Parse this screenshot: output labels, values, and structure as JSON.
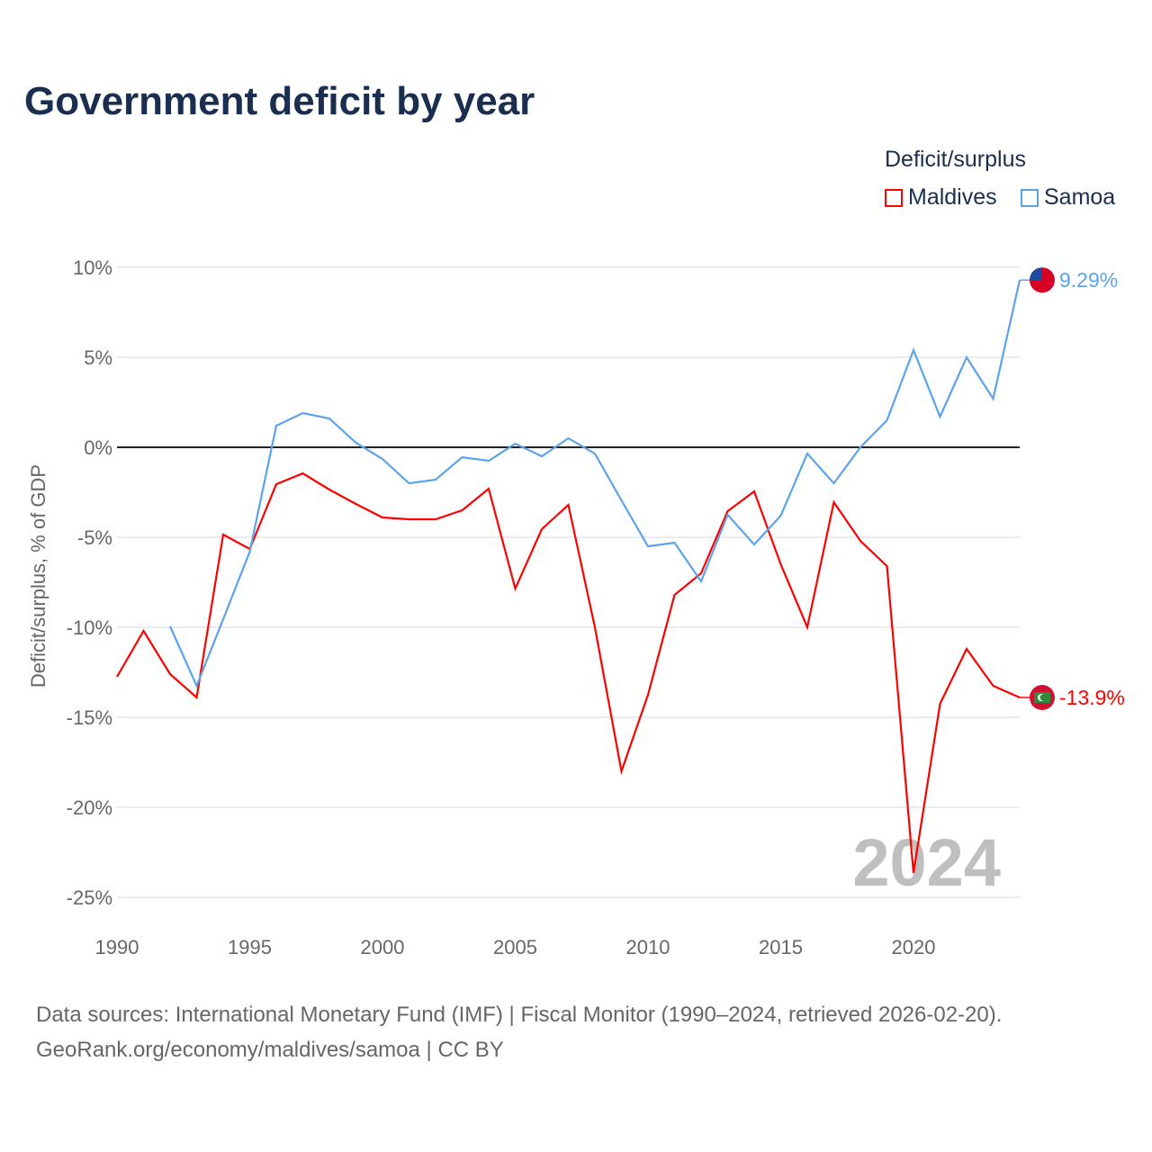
{
  "title": "Government deficit by year",
  "legend": {
    "title": "Deficit/surplus",
    "items": [
      {
        "name": "Maldives",
        "color": "#ff0000"
      },
      {
        "name": "Samoa",
        "color": "#5ba3ea"
      }
    ]
  },
  "year_watermark": "2024",
  "footer": {
    "line1": "Data sources: International Monetary Fund (IMF) | Fiscal Monitor (1990–2024, retrieved 2026-02-20).",
    "line2": "GeoRank.org/economy/maldives/samoa | CC BY"
  },
  "chart_data": {
    "type": "line",
    "title": "Government deficit by year",
    "ylabel": "Deficit/surplus, % of GDP",
    "xlabel": "",
    "xlim": [
      1990,
      2024
    ],
    "ylim": [
      -25,
      10
    ],
    "xticks": [
      1990,
      1995,
      2000,
      2005,
      2010,
      2015,
      2020
    ],
    "yticks": [
      {
        "v": 10,
        "label": "10%"
      },
      {
        "v": 5,
        "label": "5%"
      },
      {
        "v": 0,
        "label": "0%"
      },
      {
        "v": -5,
        "label": "-5%"
      },
      {
        "v": -10,
        "label": "-10%"
      },
      {
        "v": -15,
        "label": "-15%"
      },
      {
        "v": -20,
        "label": "-20%"
      },
      {
        "v": -25,
        "label": "-25%"
      }
    ],
    "grid": true,
    "series": [
      {
        "name": "Maldives",
        "color": "#ff0000",
        "end_label": "-13.9%",
        "x": [
          1990,
          1991,
          1992,
          1993,
          1994,
          1995,
          1996,
          1997,
          1998,
          1999,
          2000,
          2001,
          2002,
          2003,
          2004,
          2005,
          2006,
          2007,
          2008,
          2009,
          2010,
          2011,
          2012,
          2013,
          2014,
          2015,
          2016,
          2017,
          2018,
          2019,
          2020,
          2021,
          2022,
          2023,
          2024
        ],
        "values": [
          -12.75,
          -10.2,
          -12.6,
          -13.9,
          -4.85,
          -5.65,
          -2.05,
          -1.45,
          -2.35,
          -3.15,
          -3.9,
          -4.0,
          -4.0,
          -3.5,
          -2.3,
          -7.85,
          -4.55,
          -3.2,
          -10.0,
          -18.0,
          -13.75,
          -8.2,
          -7.0,
          -3.55,
          -2.45,
          -6.5,
          -10.0,
          -3.05,
          -5.2,
          -6.6,
          -23.65,
          -14.25,
          -11.2,
          -13.25,
          -13.9
        ]
      },
      {
        "name": "Samoa",
        "color": "#5ba3ea",
        "end_label": "9.29%",
        "x": [
          1992,
          1993,
          1994,
          1995,
          1996,
          1997,
          1998,
          1999,
          2000,
          2001,
          2002,
          2003,
          2004,
          2005,
          2006,
          2007,
          2008,
          2009,
          2010,
          2011,
          2012,
          2013,
          2014,
          2015,
          2016,
          2017,
          2018,
          2019,
          2020,
          2021,
          2022,
          2023,
          2024
        ],
        "values": [
          -9.95,
          -13.25,
          -9.55,
          -5.8,
          1.2,
          1.9,
          1.6,
          0.25,
          -0.65,
          -2.0,
          -1.8,
          -0.55,
          -0.75,
          0.2,
          -0.5,
          0.5,
          -0.35,
          -2.95,
          -5.5,
          -5.3,
          -7.45,
          -3.75,
          -5.4,
          -3.8,
          -0.35,
          -2.0,
          0.0,
          1.5,
          5.4,
          1.7,
          5.0,
          2.7,
          9.29
        ]
      }
    ]
  }
}
